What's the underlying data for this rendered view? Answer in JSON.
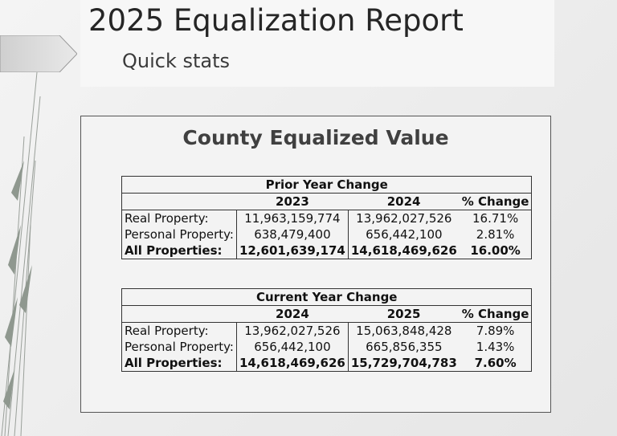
{
  "slide": {
    "title": "2025 Equalization Report",
    "subtitle": "Quick stats"
  },
  "panel": {
    "title": "County Equalized Value"
  },
  "prior_table": {
    "caption": "Prior Year Change",
    "headers": [
      "",
      "2023",
      "2024",
      "% Change"
    ],
    "rows": [
      {
        "label": "Real Property:",
        "a": "11,963,159,774",
        "b": "13,962,027,526",
        "pct": "16.71%"
      },
      {
        "label": "Personal Property:",
        "a": "638,479,400",
        "b": "656,442,100",
        "pct": "2.81%"
      },
      {
        "label": "All Properties:",
        "a": "12,601,639,174",
        "b": "14,618,469,626",
        "pct": "16.00%"
      }
    ]
  },
  "current_table": {
    "caption": "Current Year Change",
    "headers": [
      "",
      "2024",
      "2025",
      "% Change"
    ],
    "rows": [
      {
        "label": "Real Property:",
        "a": "13,962,027,526",
        "b": "15,063,848,428",
        "pct": "7.89%"
      },
      {
        "label": "Personal Property:",
        "a": "656,442,100",
        "b": "665,856,355",
        "pct": "1.43%"
      },
      {
        "label": "All Properties:",
        "a": "14,618,469,626",
        "b": "15,729,704,783",
        "pct": "7.60%"
      }
    ]
  }
}
